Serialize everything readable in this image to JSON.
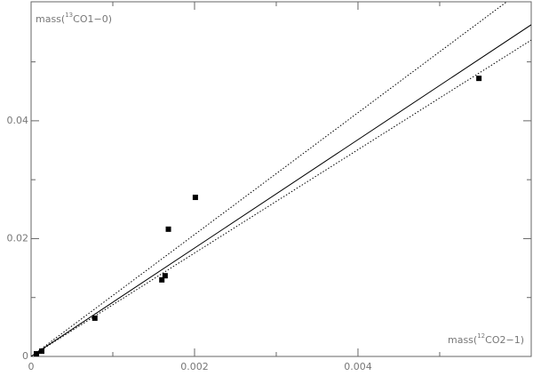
{
  "chart_data": {
    "type": "scatter",
    "xlabel": [
      "mass(",
      "12",
      "CO2−1)"
    ],
    "ylabel": [
      "mass(",
      "13",
      "CO1−0)"
    ],
    "xlim": [
      0,
      0.00612
    ],
    "ylim": [
      0,
      0.0602
    ],
    "xticks": [
      0,
      0.002,
      0.004
    ],
    "yticks": [
      0,
      0.02,
      0.04
    ],
    "xminorticks": [
      0.001,
      0.003,
      0.005
    ],
    "yminorticks": [
      0.01,
      0.03,
      0.05
    ],
    "series": [
      {
        "style": "points",
        "color": "#000000",
        "x": [
          6.5e-05,
          0.00013,
          0.00078,
          0.0016,
          0.00164,
          0.00168,
          0.00201,
          0.00548
        ],
        "values": [
          0.00045,
          0.0009,
          0.0065,
          0.013,
          0.0137,
          0.0216,
          0.027,
          0.0472
        ]
      },
      {
        "style": "solid",
        "color": "#000000",
        "x": [
          0,
          0.00612
        ],
        "values": [
          0,
          0.0563
        ]
      },
      {
        "style": "dotted",
        "color": "#000000",
        "x": [
          0,
          0.00582
        ],
        "values": [
          0,
          0.0602
        ]
      },
      {
        "style": "dotted",
        "color": "#000000",
        "x": [
          0,
          0.00612
        ],
        "values": [
          0,
          0.0537
        ]
      }
    ]
  }
}
